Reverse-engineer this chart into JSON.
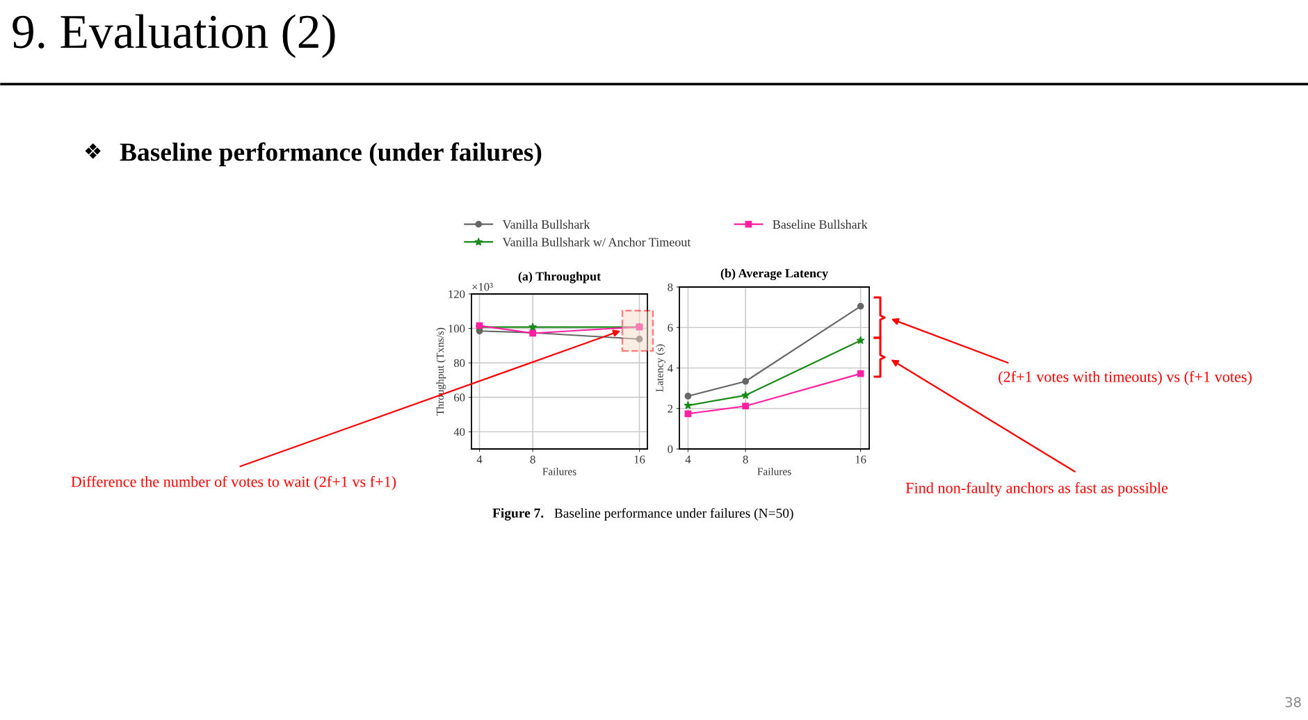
{
  "chart_data": [
    {
      "type": "line",
      "title": "(a) Throughput",
      "xlabel": "Failures",
      "ylabel": "Throughput (Txns/s)",
      "x": [
        4,
        8,
        16
      ],
      "xlim": [
        3.4,
        16.6
      ],
      "xticks": [
        4,
        8,
        16
      ],
      "ylim": [
        30,
        120
      ],
      "yticks": [
        40,
        60,
        80,
        100,
        120
      ],
      "grid": true,
      "legend": "top",
      "series": [
        {
          "name": "Vanilla Bullshark",
          "color": "#666666",
          "marker": "circle",
          "values": [
            98.5,
            97.5,
            93.8
          ]
        },
        {
          "name": "Vanilla Bullshark w/ Anchor Timeout",
          "color": "#1a8a1a",
          "marker": "star",
          "values": [
            100.8,
            100.8,
            100.8
          ]
        },
        {
          "name": "Baseline Bullshark",
          "color": "#ff1fa0",
          "marker": "square",
          "values": [
            101.6,
            97.2,
            100.9
          ]
        }
      ],
      "annotations": [
        "9. Evaluation (2)",
        "❖",
        "Baseline performance (under failures)",
        "×10³",
        "Difference the number of votes to wait (2f+1 vs f+1)",
        "Figure 7. Baseline performance under failures (N=50)",
        "38"
      ]
    },
    {
      "type": "line",
      "title": "(b) Average Latency",
      "xlabel": "Failures",
      "ylabel": "Latency (s)",
      "x": [
        4,
        8,
        16
      ],
      "xlim": [
        3.4,
        16.6
      ],
      "xticks": [
        4,
        8,
        16
      ],
      "ylim": [
        0,
        8
      ],
      "yticks": [
        0,
        2,
        4,
        6,
        8
      ],
      "grid": true,
      "series": [
        {
          "color": "#666666",
          "marker": "circle",
          "values": [
            2.61,
            3.34,
            7.05
          ]
        },
        {
          "color": "#1a8a1a",
          "marker": "star",
          "values": [
            2.15,
            2.65,
            5.36
          ]
        },
        {
          "color": "#ff1fa0",
          "marker": "square",
          "values": [
            1.74,
            2.12,
            3.72
          ]
        }
      ],
      "annotations": [
        "(2f+1 votes with timeouts) vs (f+1 votes)",
        "Find non-faulty anchors as fast as possible"
      ]
    }
  ]
}
